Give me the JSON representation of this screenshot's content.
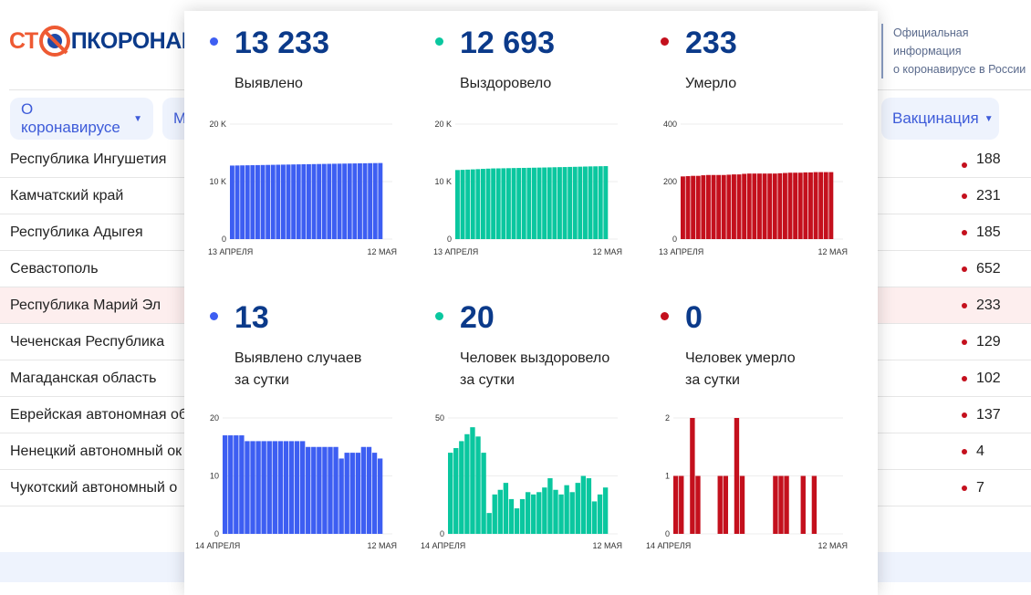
{
  "header": {
    "logo_text": "СТОП КОРОНАВИРУС",
    "logo_left": "СТ",
    "logo_right": "ПКОРОНАВИ",
    "official_line1": "Официальная информация",
    "official_line2": "о коронавирусе в России"
  },
  "nav": {
    "items": [
      {
        "label": "О коронавирусе"
      },
      {
        "label": "М"
      },
      {
        "label": "Вакцинация"
      }
    ]
  },
  "table": {
    "rows": [
      {
        "name": "Республика Ингушетия",
        "value": "188"
      },
      {
        "name": "Камчатский край",
        "value": "231"
      },
      {
        "name": "Республика Адыгея",
        "value": "185"
      },
      {
        "name": "Севастополь",
        "value": "652"
      },
      {
        "name": "Республика Марий Эл",
        "value": "233",
        "highlighted": true
      },
      {
        "name": "Чеченская Республика",
        "value": "129"
      },
      {
        "name": "Магаданская область",
        "value": "102"
      },
      {
        "name": "Еврейская автономная об",
        "value": "137"
      },
      {
        "name": "Ненецкий автономный ок",
        "value": "4"
      },
      {
        "name": "Чукотский автономный о",
        "value": "7"
      }
    ]
  },
  "colors": {
    "cases": "#3d5ef2",
    "recovered": "#0ac79f",
    "deaths": "#c4101d",
    "number": "#0b3a8a"
  },
  "stats": [
    {
      "value": "13 233",
      "label": "Выявлено",
      "color": "#3d5ef2"
    },
    {
      "value": "12 693",
      "label": "Выздоровело",
      "color": "#0ac79f"
    },
    {
      "value": "233",
      "label": "Умерло",
      "color": "#c4101d"
    },
    {
      "value": "13",
      "label": "Выявлено случаев",
      "label2": "за сутки",
      "color": "#3d5ef2"
    },
    {
      "value": "20",
      "label": "Человек выздоровело",
      "label2": "за сутки",
      "color": "#0ac79f"
    },
    {
      "value": "0",
      "label": "Человек умерло",
      "label2": "за сутки",
      "color": "#c4101d"
    }
  ],
  "chart_data": [
    {
      "type": "bar",
      "color": "#3d5ef2",
      "ylim": [
        0,
        20000
      ],
      "yticks": [
        "0",
        "10 K",
        "20 K"
      ],
      "xlabels": [
        "13 АПРЕЛЯ",
        "12 МАЯ"
      ],
      "values": [
        12787,
        12804,
        12821,
        12838,
        12855,
        12871,
        12887,
        12903,
        12919,
        12935,
        12951,
        12967,
        12983,
        12999,
        13015,
        13031,
        13046,
        13061,
        13076,
        13091,
        13106,
        13121,
        13134,
        13148,
        13162,
        13176,
        13191,
        13206,
        13220,
        13233
      ]
    },
    {
      "type": "bar",
      "color": "#0ac79f",
      "ylim": [
        0,
        20000
      ],
      "yticks": [
        "0",
        "10 K",
        "20 K"
      ],
      "xlabels": [
        "13 АПРЕЛЯ",
        "12 МАЯ"
      ],
      "values": [
        12013,
        12048,
        12085,
        12125,
        12168,
        12214,
        12256,
        12291,
        12300,
        12317,
        12336,
        12358,
        12373,
        12384,
        12399,
        12417,
        12434,
        12452,
        12472,
        12496,
        12515,
        12532,
        12553,
        12571,
        12593,
        12618,
        12642,
        12656,
        12673,
        12693
      ]
    },
    {
      "type": "bar",
      "color": "#c4101d",
      "ylim": [
        0,
        400
      ],
      "yticks": [
        "0",
        "200",
        "400"
      ],
      "xlabels": [
        "13 АПРЕЛЯ",
        "12 МАЯ"
      ],
      "values": [
        218,
        219,
        220,
        220,
        222,
        223,
        223,
        223,
        223,
        224,
        225,
        225,
        227,
        228,
        228,
        228,
        228,
        228,
        228,
        229,
        230,
        231,
        231,
        231,
        232,
        232,
        233,
        233,
        233,
        233
      ]
    },
    {
      "type": "bar",
      "color": "#3d5ef2",
      "ylim": [
        0,
        20
      ],
      "yticks": [
        "0",
        "10",
        "20"
      ],
      "xlabels": [
        "14 АПРЕЛЯ",
        "12 МАЯ"
      ],
      "values": [
        17,
        17,
        17,
        17,
        16,
        16,
        16,
        16,
        16,
        16,
        16,
        16,
        16,
        16,
        16,
        15,
        15,
        15,
        15,
        15,
        15,
        13,
        14,
        14,
        14,
        15,
        15,
        14,
        13
      ]
    },
    {
      "type": "bar",
      "color": "#0ac79f",
      "ylim": [
        0,
        50
      ],
      "yticks": [
        "0",
        "",
        "50"
      ],
      "xlabels": [
        "14 АПРЕЛЯ",
        "12 МАЯ"
      ],
      "values": [
        35,
        37,
        40,
        43,
        46,
        42,
        35,
        9,
        17,
        19,
        22,
        15,
        11,
        15,
        18,
        17,
        18,
        20,
        24,
        19,
        17,
        21,
        18,
        22,
        25,
        24,
        14,
        17,
        20
      ]
    },
    {
      "type": "bar",
      "color": "#c4101d",
      "ylim": [
        0,
        2
      ],
      "yticks": [
        "0",
        "1",
        "2"
      ],
      "xlabels": [
        "14 АПРЕЛЯ",
        "12 МАЯ"
      ],
      "values": [
        1,
        1,
        0,
        2,
        1,
        0,
        0,
        0,
        1,
        1,
        0,
        2,
        1,
        0,
        0,
        0,
        0,
        0,
        1,
        1,
        1,
        0,
        0,
        1,
        0,
        1,
        0,
        0,
        0
      ]
    }
  ]
}
